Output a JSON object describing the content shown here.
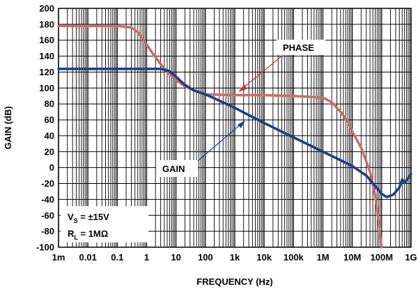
{
  "chart_data": {
    "type": "line",
    "xscale": "log",
    "xlim": [
      0.001,
      1000000000
    ],
    "ylim": [
      -100,
      200
    ],
    "grid": true,
    "xlabel": "FREQUENCY (Hz)",
    "ylabel": "GAIN (dB)",
    "x_ticks": [
      {
        "value": 0.001,
        "label": "1m"
      },
      {
        "value": 0.01,
        "label": "0.01"
      },
      {
        "value": 0.1,
        "label": "0.1"
      },
      {
        "value": 1,
        "label": "1"
      },
      {
        "value": 10,
        "label": "10"
      },
      {
        "value": 100,
        "label": "100"
      },
      {
        "value": 1000,
        "label": "1k"
      },
      {
        "value": 10000,
        "label": "10k"
      },
      {
        "value": 100000,
        "label": "100k"
      },
      {
        "value": 1000000,
        "label": "1M"
      },
      {
        "value": 10000000,
        "label": "10M"
      },
      {
        "value": 100000000,
        "label": "100M"
      },
      {
        "value": 1000000000,
        "label": "1G"
      }
    ],
    "y_ticks": [
      {
        "value": 200,
        "label": "200"
      },
      {
        "value": 180,
        "label": "180"
      },
      {
        "value": 160,
        "label": "160"
      },
      {
        "value": 140,
        "label": "140"
      },
      {
        "value": 120,
        "label": "120"
      },
      {
        "value": 100,
        "label": "100"
      },
      {
        "value": 80,
        "label": "80"
      },
      {
        "value": 60,
        "label": "60"
      },
      {
        "value": 40,
        "label": "40"
      },
      {
        "value": 20,
        "label": "20"
      },
      {
        "value": 0,
        "label": "0"
      },
      {
        "value": -20,
        "label": "-20"
      },
      {
        "value": -40,
        "label": "-40"
      },
      {
        "value": -60,
        "label": "-60"
      },
      {
        "value": -80,
        "label": "-80"
      },
      {
        "value": -100,
        "label": "-100"
      }
    ],
    "series": [
      {
        "name": "GAIN",
        "color": "#1f3f7f",
        "points": [
          [
            0.001,
            124
          ],
          [
            0.01,
            124
          ],
          [
            0.1,
            124
          ],
          [
            1,
            124
          ],
          [
            3,
            124
          ],
          [
            6,
            121
          ],
          [
            10,
            114
          ],
          [
            20,
            104
          ],
          [
            40,
            97
          ],
          [
            100,
            92
          ],
          [
            300,
            84
          ],
          [
            1000,
            75
          ],
          [
            10000,
            56
          ],
          [
            100000,
            38
          ],
          [
            1000000,
            20
          ],
          [
            10000000,
            2
          ],
          [
            30000000,
            -10
          ],
          [
            60000000,
            -23
          ],
          [
            100000000,
            -33
          ],
          [
            150000000,
            -37
          ],
          [
            250000000,
            -34
          ],
          [
            400000000,
            -25
          ],
          [
            500000000,
            -15
          ],
          [
            600000000,
            -19
          ],
          [
            700000000,
            -16
          ],
          [
            1000000000,
            -8
          ]
        ]
      },
      {
        "name": "PHASE",
        "color": "#c86e6e",
        "points": [
          [
            0.001,
            178
          ],
          [
            0.01,
            178
          ],
          [
            0.1,
            178
          ],
          [
            0.3,
            176
          ],
          [
            0.5,
            170
          ],
          [
            0.8,
            160
          ],
          [
            1.5,
            145
          ],
          [
            3,
            130
          ],
          [
            6,
            117
          ],
          [
            10,
            110
          ],
          [
            20,
            102
          ],
          [
            50,
            96
          ],
          [
            100,
            92
          ],
          [
            1000,
            91
          ],
          [
            10000,
            91
          ],
          [
            100000,
            90
          ],
          [
            1000000,
            88
          ],
          [
            2000000,
            82
          ],
          [
            4000000,
            70
          ],
          [
            7000000,
            58
          ],
          [
            10000000,
            45
          ],
          [
            20000000,
            25
          ],
          [
            40000000,
            -5
          ],
          [
            60000000,
            -35
          ],
          [
            80000000,
            -70
          ],
          [
            100000000,
            -100
          ]
        ]
      }
    ],
    "annotations": {
      "phase_label": "PHASE",
      "gain_label": "GAIN",
      "vs_label": "V",
      "vs_sub": "S",
      "vs_value": " = ±15V",
      "rl_label": "R",
      "rl_sub": "L",
      "rl_value": " = 1MΩ"
    }
  }
}
